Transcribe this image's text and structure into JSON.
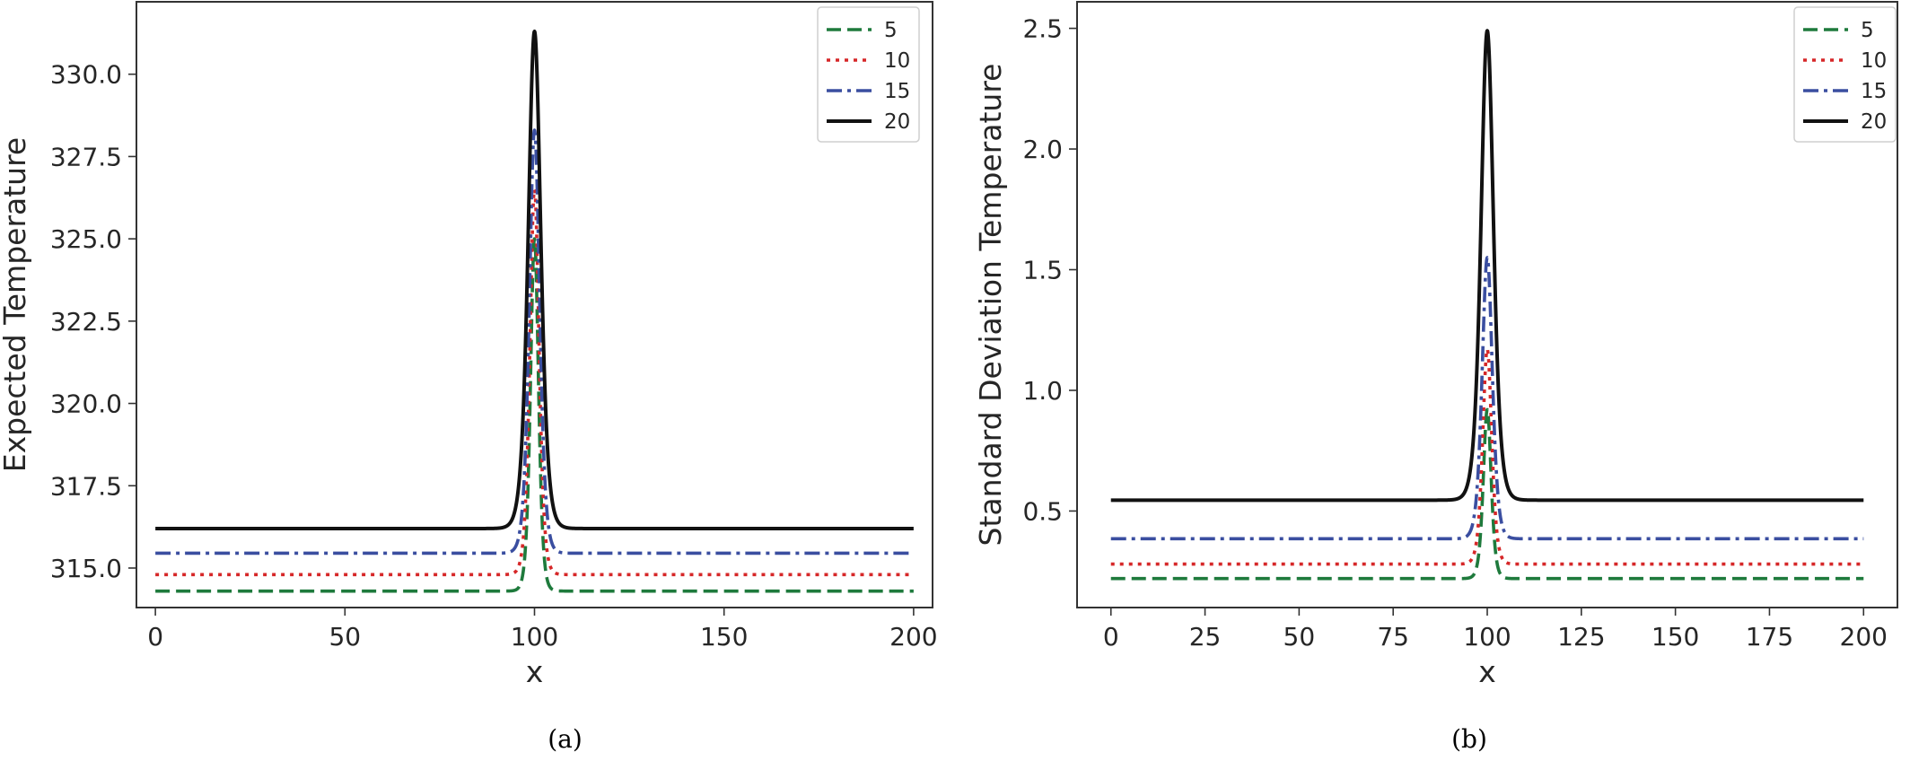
{
  "figure": {
    "colors": {
      "5": "#1e7a3c",
      "10": "#d62728",
      "15": "#3a4ea0",
      "20": "#111111"
    }
  },
  "chart_data": [
    {
      "type": "line",
      "caption": "(a)",
      "xlabel": "x",
      "ylabel": "Expected Temperature",
      "xlim": [
        -5,
        205
      ],
      "ylim": [
        313.8,
        332.2
      ],
      "xticks": [
        0,
        50,
        100,
        150,
        200
      ],
      "xtick_labels": [
        "0",
        "50",
        "100",
        "150",
        "200"
      ],
      "yticks": [
        315.0,
        317.5,
        320.0,
        322.5,
        325.0,
        327.5,
        330.0
      ],
      "ytick_labels": [
        "315.0",
        "317.5",
        "320.0",
        "322.5",
        "325.0",
        "327.5",
        "330.0"
      ],
      "legend_position": "top-right",
      "peak_center": 100,
      "series": [
        {
          "name": "5",
          "style": "dashed",
          "color": "#1e7a3c",
          "baseline": 314.3,
          "peak": 325.0,
          "width": 1.4
        },
        {
          "name": "10",
          "style": "dotted",
          "color": "#d62728",
          "baseline": 314.8,
          "peak": 326.5,
          "width": 1.6
        },
        {
          "name": "15",
          "style": "dashdot",
          "color": "#3a4ea0",
          "baseline": 315.45,
          "peak": 328.3,
          "width": 1.8
        },
        {
          "name": "20",
          "style": "solid",
          "color": "#111111",
          "baseline": 316.2,
          "peak": 331.3,
          "width": 2.2
        }
      ]
    },
    {
      "type": "line",
      "caption": "(b)",
      "xlabel": "x",
      "ylabel": "Standard Deviation Temperature",
      "xlim": [
        -9,
        209
      ],
      "ylim": [
        0.1,
        2.61
      ],
      "xticks": [
        0,
        25,
        50,
        75,
        100,
        125,
        150,
        175,
        200
      ],
      "xtick_labels": [
        "0",
        "25",
        "50",
        "75",
        "100",
        "125",
        "150",
        "175",
        "200"
      ],
      "yticks": [
        0.5,
        1.0,
        1.5,
        2.0,
        2.5
      ],
      "ytick_labels": [
        "0.5",
        "1.0",
        "1.5",
        "2.0",
        "2.5"
      ],
      "legend_position": "top-right",
      "peak_center": 100,
      "series": [
        {
          "name": "5",
          "style": "dashed",
          "color": "#1e7a3c",
          "baseline": 0.22,
          "peak": 0.92,
          "width": 1.4
        },
        {
          "name": "10",
          "style": "dotted",
          "color": "#d62728",
          "baseline": 0.28,
          "peak": 1.17,
          "width": 1.6
        },
        {
          "name": "15",
          "style": "dashdot",
          "color": "#3a4ea0",
          "baseline": 0.385,
          "peak": 1.55,
          "width": 1.8
        },
        {
          "name": "20",
          "style": "solid",
          "color": "#111111",
          "baseline": 0.545,
          "peak": 2.49,
          "width": 2.2
        }
      ]
    }
  ]
}
